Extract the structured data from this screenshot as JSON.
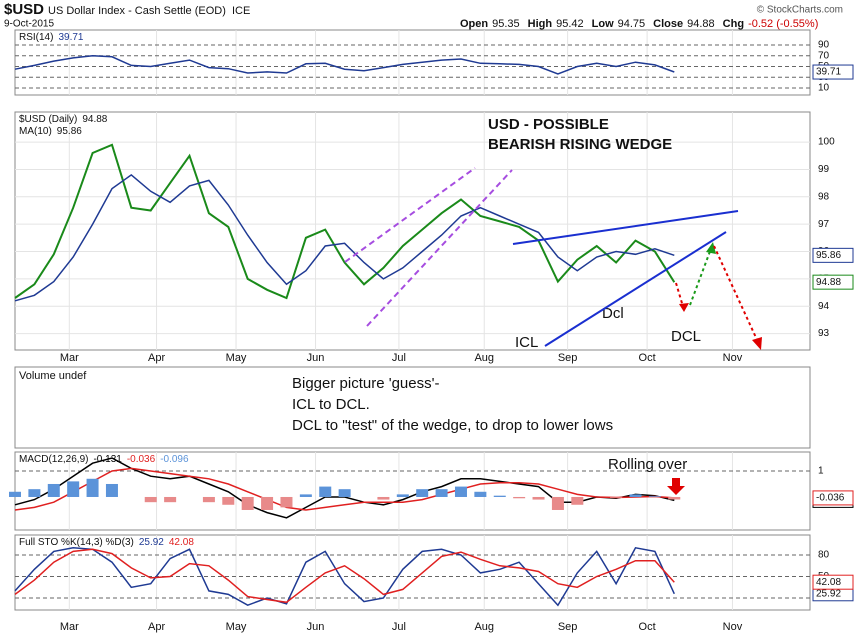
{
  "header": {
    "symbol": "$USD",
    "name": "US Dollar Index - Cash Settle (EOD)",
    "exchange": "ICE",
    "date": "9-Oct-2015",
    "quote": [
      [
        "Open",
        "95.35"
      ],
      [
        "High",
        "95.42"
      ],
      [
        "Low",
        "94.75"
      ],
      [
        "Close",
        "94.88"
      ],
      [
        "Chg",
        "-0.52 (-0.55%)"
      ]
    ],
    "watermark": "© StockCharts.com"
  },
  "volume_panel": {
    "label": "Volume undef",
    "notes": [
      "Bigger picture 'guess'-",
      "ICL to DCL.",
      "DCL to \"test\" of the wedge, to drop to lower lows"
    ]
  },
  "chart_data": [
    {
      "type": "line",
      "title": "RSI(14)",
      "ylim": [
        -3,
        117.9
      ],
      "yticks": [
        10,
        30,
        50,
        70,
        90
      ],
      "series": [
        {
          "color": "#1f3a93",
          "values": [
            45,
            52,
            60,
            66,
            70,
            68,
            52,
            50,
            56,
            62,
            48,
            46,
            38,
            40,
            38,
            55,
            56,
            45,
            42,
            48,
            54,
            58,
            62,
            64,
            56,
            55,
            54,
            50,
            36,
            50,
            56,
            50,
            58,
            53,
            39.71
          ]
        }
      ]
    },
    {
      "type": "line",
      "ylim": [
        92.4,
        101.1
      ],
      "yticks": [
        93,
        94,
        95,
        96,
        97,
        98,
        99,
        100
      ],
      "xlim": [
        0,
        41
      ],
      "x": [
        0,
        1,
        2,
        3,
        4,
        5,
        6,
        7,
        8,
        9,
        10,
        11,
        12,
        13,
        14,
        15,
        16,
        17,
        18,
        19,
        20,
        21,
        22,
        23,
        24,
        25,
        26,
        27,
        28,
        29,
        30,
        31,
        32,
        33,
        34
      ],
      "xticks": [
        {
          "value": 2.8,
          "label": "Mar"
        },
        {
          "value": 7.3,
          "label": "Apr"
        },
        {
          "value": 11.4,
          "label": "May"
        },
        {
          "value": 15.5,
          "label": "Jun"
        },
        {
          "value": 19.8,
          "label": "Jul"
        },
        {
          "value": 24.2,
          "label": "Aug"
        },
        {
          "value": 28.5,
          "label": "Sep"
        },
        {
          "value": 32.6,
          "label": "Oct"
        },
        {
          "value": 37.0,
          "label": "Nov"
        }
      ],
      "series": [
        {
          "name": "$USD (Daily)",
          "color": "#1a8a1a",
          "values": [
            94.3,
            94.8,
            95.9,
            97.6,
            99.6,
            99.9,
            97.6,
            97.5,
            98.5,
            99.5,
            97.4,
            96.9,
            95.0,
            94.6,
            94.3,
            96.5,
            96.8,
            95.6,
            94.8,
            95.4,
            96.2,
            96.8,
            97.4,
            97.9,
            97.3,
            97.1,
            96.9,
            96.4,
            94.9,
            95.7,
            96.2,
            95.6,
            96.4,
            96.0,
            94.88
          ]
        },
        {
          "name": "MA(10)",
          "color": "#1f3a93",
          "values": [
            94.2,
            94.4,
            94.9,
            95.8,
            97.0,
            98.3,
            98.8,
            98.2,
            97.8,
            98.4,
            98.6,
            97.7,
            96.6,
            95.6,
            94.8,
            95.3,
            96.2,
            96.3,
            95.6,
            95.0,
            95.4,
            96.0,
            96.6,
            97.3,
            97.6,
            97.3,
            97.0,
            96.7,
            95.8,
            95.3,
            95.8,
            96.0,
            95.9,
            96.1,
            95.86
          ]
        }
      ],
      "annotations": [
        {
          "text": "USD -  POSSIBLE",
          "color": "#e00000"
        },
        {
          "text": "BEARISH RISING WEDGE",
          "color": "#e00000"
        },
        {
          "text": "ICL",
          "color": "#e00000"
        },
        {
          "text": "Dcl",
          "color": "#1f6fc4"
        },
        {
          "text": "DCL",
          "color": "#1f6fc4"
        }
      ]
    },
    {
      "type": "line",
      "title": "MACD(12,26,9)",
      "ylim": [
        -1.27,
        1.73
      ],
      "yticks": [
        1
      ],
      "series": [
        {
          "color": "#000000",
          "values": [
            -0.3,
            -0.1,
            0.3,
            0.8,
            1.3,
            1.5,
            1.1,
            0.8,
            0.7,
            0.8,
            0.5,
            0.2,
            -0.3,
            -0.6,
            -0.8,
            -0.4,
            0.0,
            0.0,
            -0.2,
            -0.3,
            -0.1,
            0.2,
            0.4,
            0.7,
            0.7,
            0.6,
            0.5,
            0.4,
            -0.2,
            -0.2,
            0.0,
            -0.05,
            0.1,
            0.05,
            -0.131
          ]
        },
        {
          "color": "#e02020",
          "values": [
            -0.5,
            -0.4,
            -0.2,
            0.2,
            0.6,
            1.0,
            1.1,
            1.0,
            0.9,
            0.8,
            0.7,
            0.5,
            0.2,
            -0.1,
            -0.4,
            -0.5,
            -0.4,
            -0.3,
            -0.2,
            -0.2,
            -0.2,
            -0.1,
            0.1,
            0.3,
            0.5,
            0.55,
            0.55,
            0.5,
            0.3,
            0.1,
            0.0,
            -0.02,
            0.0,
            0.02,
            -0.036
          ]
        },
        {
          "color": "#5b93d9",
          "style": "bar",
          "values": [
            0.2,
            0.3,
            0.5,
            0.6,
            0.7,
            0.5,
            0.0,
            -0.2,
            -0.2,
            0.0,
            -0.2,
            -0.3,
            -0.5,
            -0.5,
            -0.4,
            0.1,
            0.4,
            0.3,
            0.0,
            -0.1,
            0.1,
            0.3,
            0.3,
            0.4,
            0.2,
            0.05,
            -0.05,
            -0.1,
            -0.5,
            -0.3,
            0.0,
            -0.03,
            0.1,
            0.03,
            -0.096
          ]
        }
      ],
      "annotations": [
        {
          "text": "Rolling over",
          "color": "#e00000"
        }
      ]
    },
    {
      "type": "line",
      "title": "Full STO %K(14,3) %D(3)",
      "ylim": [
        3.3,
        107.9
      ],
      "yticks": [
        20,
        50,
        80
      ],
      "series": [
        {
          "color": "#1f3a93",
          "values": [
            30,
            60,
            85,
            90,
            88,
            70,
            35,
            40,
            75,
            88,
            30,
            25,
            10,
            20,
            12,
            70,
            85,
            40,
            15,
            20,
            60,
            85,
            88,
            80,
            55,
            60,
            70,
            40,
            10,
            55,
            85,
            40,
            90,
            85,
            25.92
          ]
        },
        {
          "color": "#e02020",
          "values": [
            25,
            45,
            70,
            85,
            88,
            82,
            62,
            48,
            50,
            68,
            65,
            45,
            22,
            18,
            14,
            35,
            55,
            65,
            47,
            25,
            32,
            55,
            78,
            84,
            74,
            65,
            62,
            57,
            40,
            35,
            50,
            60,
            72,
            72,
            42.08
          ]
        }
      ]
    }
  ]
}
